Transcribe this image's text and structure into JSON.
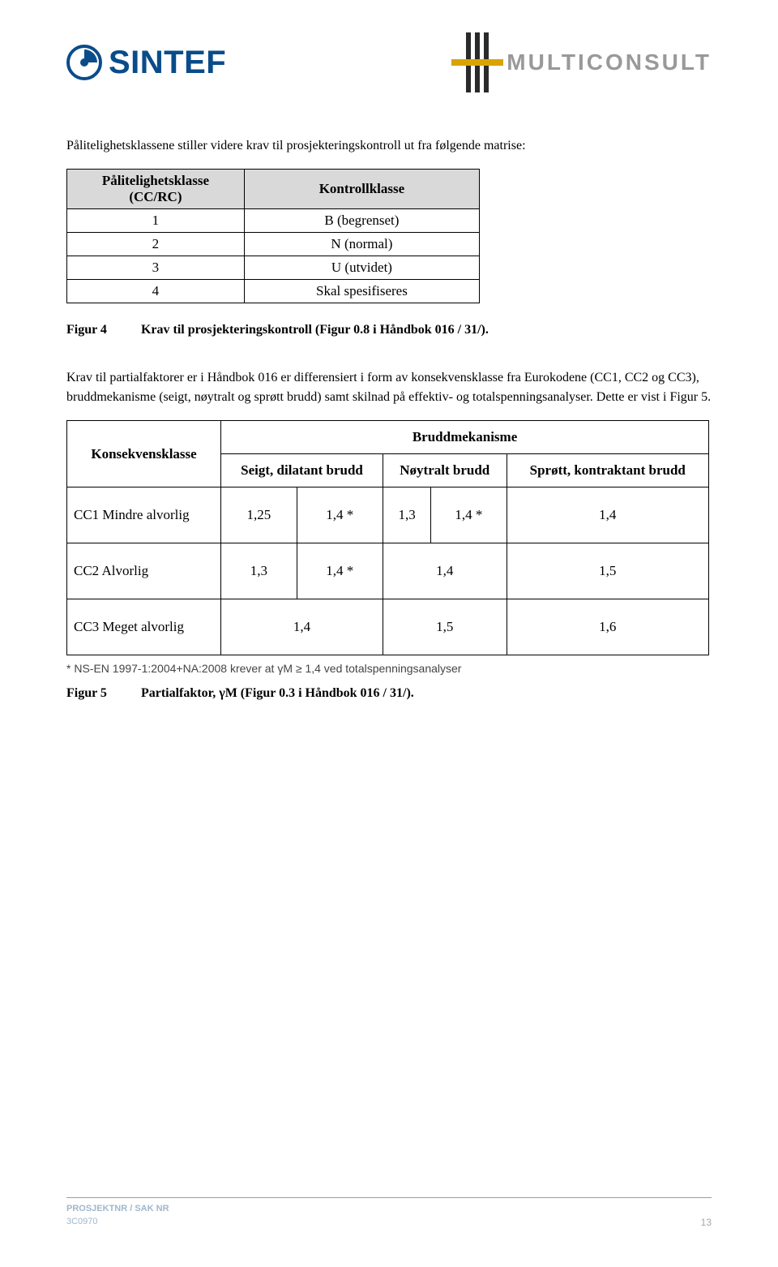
{
  "header": {
    "sintef": "SINTEF",
    "multiconsult": "MULTICONSULT",
    "sintef_color": "#0a4c8a",
    "multiconsult_color": "#999999",
    "mc_bar_color": "#2a2a2a",
    "mc_yellow": "#d9a300"
  },
  "intro": "Pålitelighetsklassene stiller videre krav til prosjekteringskontroll ut fra følgende matrise:",
  "table1": {
    "header_bg": "#d9d9d9",
    "col1_header_l1": "Pålitelighetsklasse",
    "col1_header_l2": "(CC/RC)",
    "col2_header": "Kontrollklasse",
    "rows": [
      {
        "a": "1",
        "b": "B (begrenset)"
      },
      {
        "a": "2",
        "b": "N (normal)"
      },
      {
        "a": "3",
        "b": "U (utvidet)"
      },
      {
        "a": "4",
        "b": "Skal spesifiseres"
      }
    ]
  },
  "fig4": {
    "label": "Figur 4",
    "text": "Krav til prosjekteringskontroll (Figur 0.8 i Håndbok 016 / 31/)."
  },
  "para2": "Krav til partialfaktorer er i Håndbok 016 er differensiert i form av konsekvensklasse fra Eurokodene (CC1, CC2 og CC3), bruddmekanisme (seigt, nøytralt og sprøtt brudd) samt skilnad på effektiv- og totalspenningsanalyser. Dette er vist i Figur 5.",
  "table2": {
    "top_center": "Bruddmekanisme",
    "col1": "Konsekvensklasse",
    "sub_a": "Seigt, dilatant brudd",
    "sub_b": "Nøytralt brudd",
    "sub_c": "Sprøtt, kontraktant brudd",
    "rows": [
      {
        "k": "CC1 Mindre alvorlig",
        "a1": "1,25",
        "a2": "1,4 *",
        "b1": "1,3",
        "b2": "1,4 *",
        "c": "1,4"
      },
      {
        "k": "CC2 Alvorlig",
        "a1": "1,3",
        "a2": "1,4 *",
        "b1": "1,4",
        "b2": "",
        "c": "1,5"
      },
      {
        "k": "CC3 Meget alvorlig",
        "a1": "1,4",
        "a2": "",
        "b1": "1,5",
        "b2": "",
        "c": "1,6"
      }
    ]
  },
  "footnote": "* NS-EN 1997-1:2004+NA:2008 krever at γM ≥ 1,4 ved totalspenningsanalyser",
  "fig5": {
    "label": "Figur 5",
    "text": "Partialfaktor, γM (Figur 0.3 i Håndbok 016 / 31/)."
  },
  "footer": {
    "label": "PROSJEKTNR / SAK NR",
    "id": "3C0970",
    "page": "13",
    "divider_color": "#7aa4c9",
    "text_color": "#9fb7cc",
    "page_color": "#a6a6a6"
  }
}
